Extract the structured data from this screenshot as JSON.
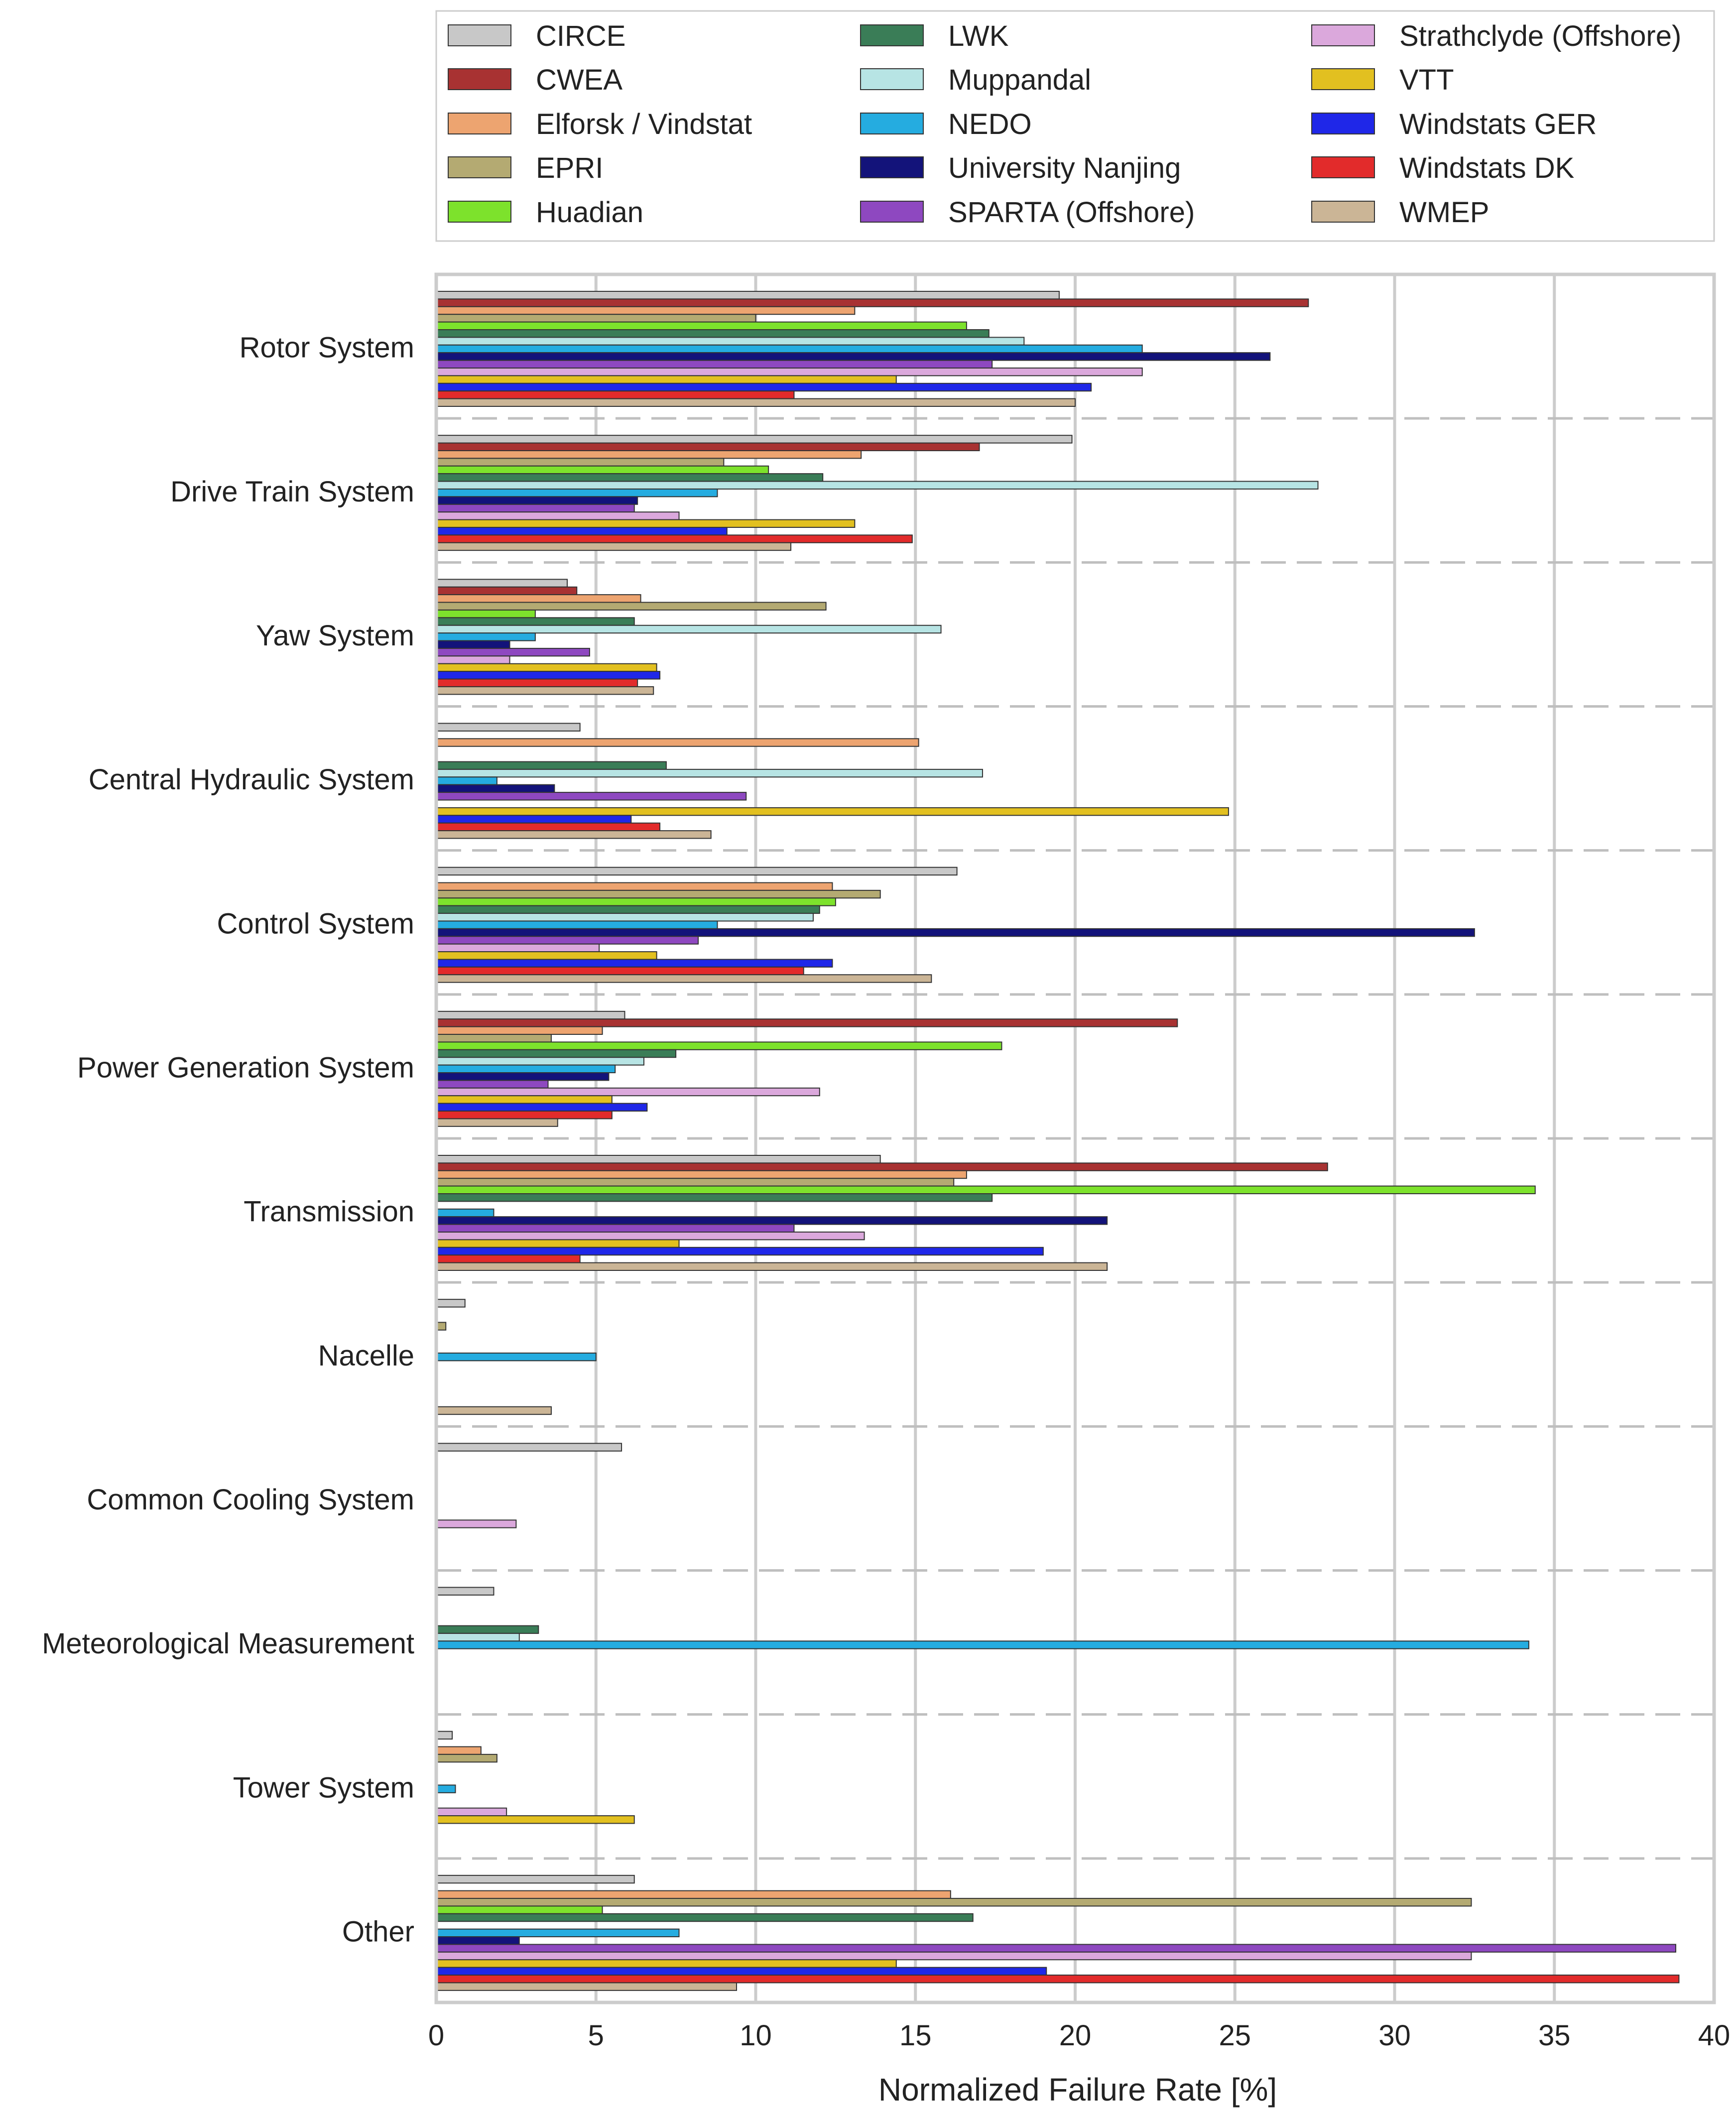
{
  "chart_data": {
    "type": "bar",
    "orientation": "horizontal",
    "title": "",
    "xlabel": "Normalized Failure Rate [%]",
    "ylabel": "",
    "xlim": [
      0,
      40
    ],
    "xticks": [
      "0",
      "5",
      "10",
      "15",
      "20",
      "25",
      "30",
      "35",
      "40"
    ],
    "grid": true,
    "legend_position": "top",
    "categories": [
      "Rotor System",
      "Drive Train System",
      "Yaw System",
      "Central Hydraulic System",
      "Control System",
      "Power Generation System",
      "Transmission",
      "Nacelle",
      "Common Cooling System",
      "Meteorological Measurement",
      "Tower System",
      "Other"
    ],
    "series": [
      {
        "name": "CIRCE",
        "color": "#c8c8c8",
        "values": [
          19.5,
          19.9,
          4.1,
          4.5,
          16.3,
          5.9,
          13.9,
          0.9,
          5.8,
          1.8,
          0.5,
          6.2
        ]
      },
      {
        "name": "CWEA",
        "color": "#a83232",
        "values": [
          27.3,
          17.0,
          4.4,
          null,
          null,
          23.2,
          27.9,
          null,
          null,
          null,
          null,
          null
        ]
      },
      {
        "name": "Elforsk / Vindstat",
        "color": "#eda470",
        "values": [
          13.1,
          13.3,
          6.4,
          15.1,
          12.4,
          5.2,
          16.6,
          null,
          null,
          null,
          1.4,
          16.1
        ]
      },
      {
        "name": "EPRI",
        "color": "#b4aa72",
        "values": [
          10.0,
          9.0,
          12.2,
          null,
          13.9,
          3.6,
          16.2,
          0.3,
          null,
          null,
          1.9,
          32.4
        ]
      },
      {
        "name": "Huadian",
        "color": "#7de22c",
        "values": [
          16.6,
          10.4,
          3.1,
          null,
          12.5,
          17.7,
          34.4,
          null,
          null,
          null,
          null,
          5.2
        ]
      },
      {
        "name": "LWK",
        "color": "#3a7d57",
        "values": [
          17.3,
          12.1,
          6.2,
          7.2,
          12.0,
          7.5,
          17.4,
          null,
          null,
          3.2,
          null,
          16.8
        ]
      },
      {
        "name": "Muppandal",
        "color": "#b7e4e4",
        "values": [
          18.4,
          27.6,
          15.8,
          17.1,
          11.8,
          6.5,
          null,
          null,
          null,
          2.6,
          null,
          null
        ]
      },
      {
        "name": "NEDO",
        "color": "#25ace0",
        "values": [
          22.1,
          8.8,
          3.1,
          1.9,
          8.8,
          5.6,
          1.8,
          5.0,
          null,
          34.2,
          0.6,
          7.6
        ]
      },
      {
        "name": "University Nanjing",
        "color": "#13137a",
        "values": [
          26.1,
          6.3,
          2.3,
          3.7,
          32.5,
          5.4,
          21.0,
          null,
          null,
          null,
          null,
          2.6
        ]
      },
      {
        "name": "SPARTA (Offshore)",
        "color": "#8e48c0",
        "values": [
          17.4,
          6.2,
          4.8,
          9.7,
          8.2,
          3.5,
          11.2,
          null,
          null,
          null,
          null,
          38.8
        ]
      },
      {
        "name": "Strathclyde (Offshore)",
        "color": "#dba8dc",
        "values": [
          22.1,
          7.6,
          2.3,
          null,
          5.1,
          12.0,
          13.4,
          null,
          2.5,
          null,
          2.2,
          32.4
        ]
      },
      {
        "name": "VTT",
        "color": "#e2c020",
        "values": [
          14.4,
          13.1,
          6.9,
          24.8,
          6.9,
          5.5,
          7.6,
          null,
          null,
          null,
          6.2,
          14.4
        ]
      },
      {
        "name": "Windstats GER",
        "color": "#1f27e8",
        "values": [
          20.5,
          9.1,
          7.0,
          6.1,
          12.4,
          6.6,
          19.0,
          null,
          null,
          null,
          null,
          19.1
        ]
      },
      {
        "name": "Windstats DK",
        "color": "#e22b2b",
        "values": [
          11.2,
          14.9,
          6.3,
          7.0,
          11.5,
          5.5,
          4.5,
          null,
          null,
          null,
          null,
          38.9
        ]
      },
      {
        "name": "WMEP",
        "color": "#cbb596",
        "values": [
          20.0,
          11.1,
          6.8,
          8.6,
          15.5,
          3.8,
          21.0,
          3.6,
          null,
          null,
          null,
          9.4
        ]
      }
    ]
  }
}
